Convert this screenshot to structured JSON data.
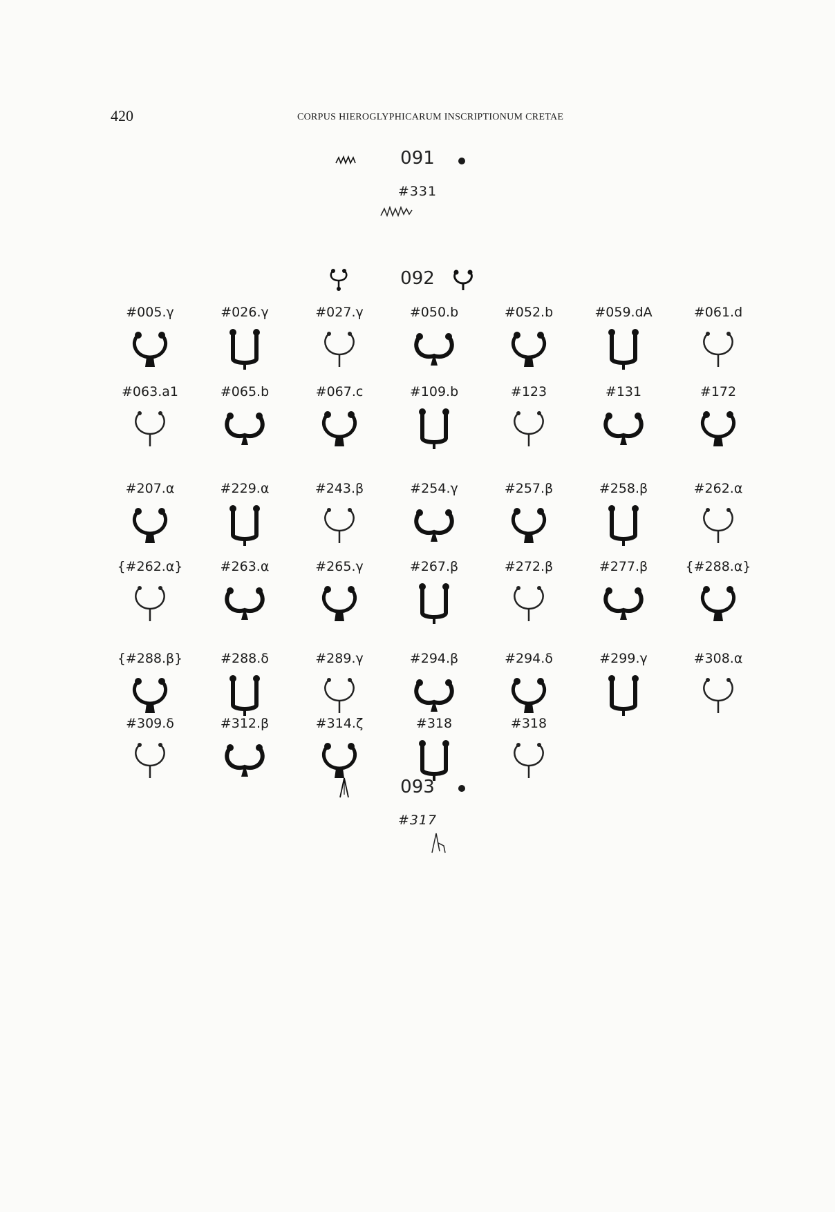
{
  "header": {
    "page_number": "420",
    "running_head": "CORPUS HIEROGLYPHICARUM INSCRIPTIONUM CRETAE"
  },
  "sections": [
    {
      "number": "091",
      "labels": [
        "#331"
      ]
    },
    {
      "number": "092",
      "labels": [
        "#005.γ",
        "#026.γ",
        "#027.γ",
        "#050.b",
        "#052.b",
        "#059.dA",
        "#061.d",
        "#063.a1",
        "#065.b",
        "#067.c",
        "#109.b",
        "#123",
        "#131",
        "#172",
        "#207.α",
        "#229.α",
        "#243.β",
        "#254.γ",
        "#257.β",
        "#258.β",
        "#262.α",
        "{#262.α}",
        "#263.α",
        "#265.γ",
        "#267.β",
        "#272.β",
        "#277.β",
        "{#288.α}",
        "{#288.β}",
        "#288.δ",
        "#289.γ",
        "#294.β",
        "#294.δ",
        "#299.γ",
        "#308.α",
        "#309.δ",
        "#312.β",
        "#314.ζ",
        "#318",
        "#318"
      ]
    },
    {
      "number": "093",
      "labels": [
        "#317"
      ]
    }
  ],
  "glyph_icons": {
    "zigzag": "zigzag-sign-icon",
    "horseshoe": "horseshoe-sign-icon",
    "arrowhead": "arrowhead-sign-icon"
  }
}
